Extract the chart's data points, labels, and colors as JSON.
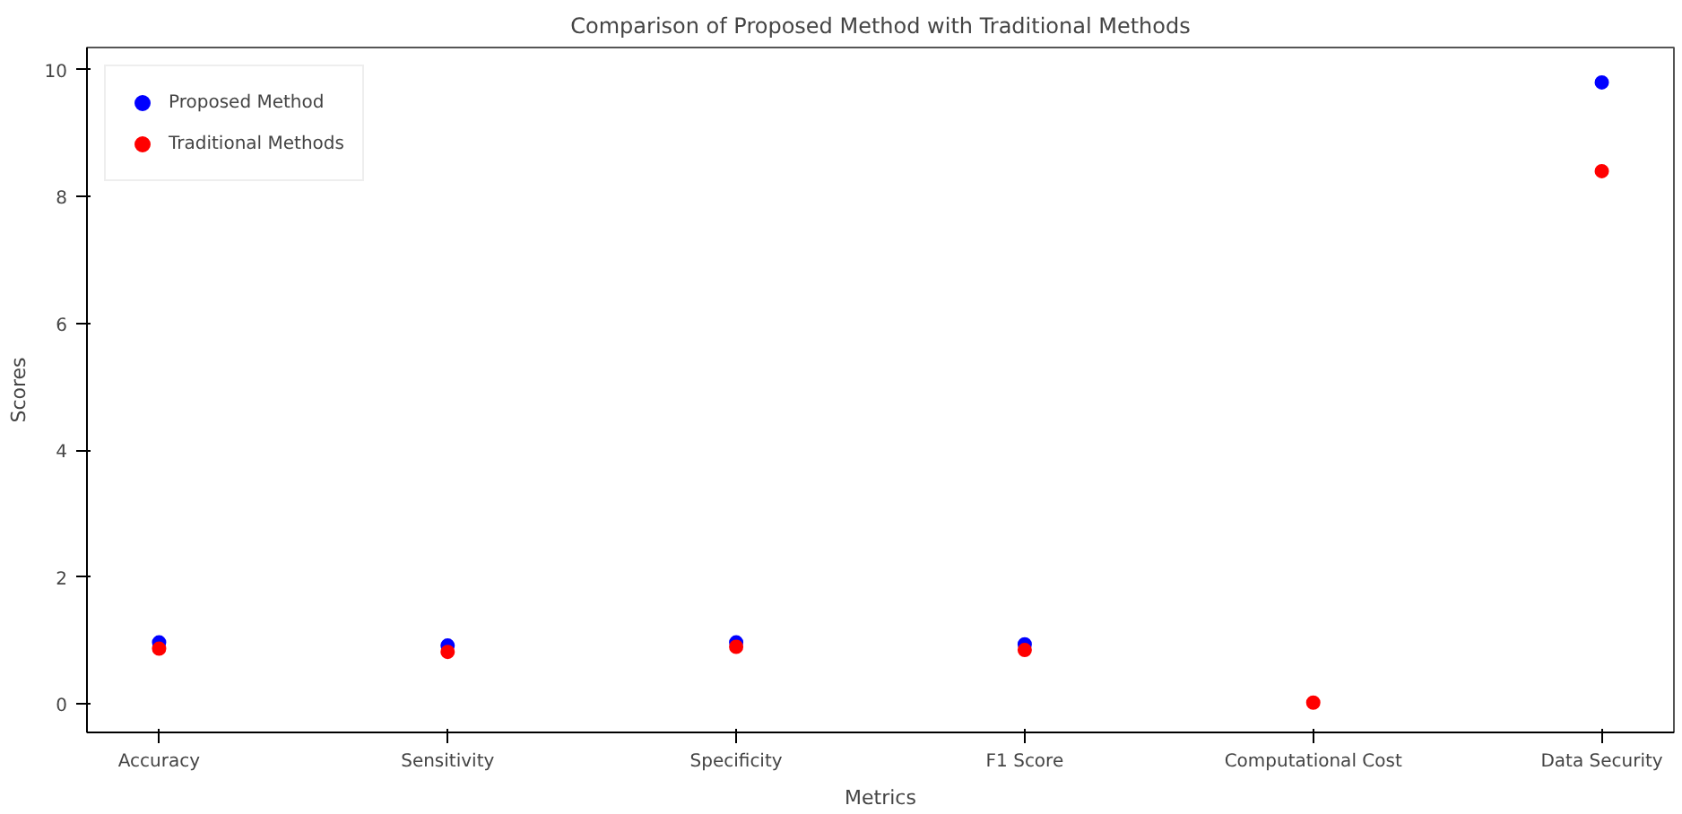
{
  "chart_data": {
    "type": "scatter",
    "title": "Comparison of Proposed Method with Traditional Methods",
    "xlabel": "Metrics",
    "ylabel": "Scores",
    "categories": [
      "Accuracy",
      "Sensitivity",
      "Specificity",
      "F1 Score",
      "Computational Cost",
      "Data Security"
    ],
    "series": [
      {
        "name": "Proposed Method",
        "color": "#0000ff",
        "values": [
          0.97,
          0.92,
          0.97,
          0.94,
          null,
          9.8
        ]
      },
      {
        "name": "Traditional Methods",
        "color": "#ff0000",
        "values": [
          0.87,
          0.82,
          0.9,
          0.85,
          0.02,
          8.4
        ]
      }
    ],
    "ylim": [
      -0.45,
      10.35
    ],
    "yticks": [
      0,
      2,
      4,
      6,
      8,
      10
    ],
    "grid": false,
    "legend": "top left",
    "marker": "circle"
  }
}
